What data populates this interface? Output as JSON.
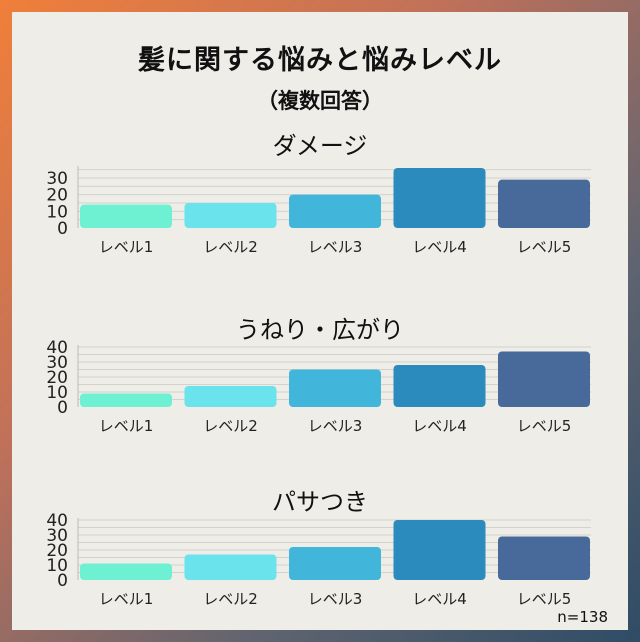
{
  "title": "髪に関する悩みと悩みレベル",
  "subtitle": "（複数回答）",
  "note": "n=138",
  "chart_data": [
    {
      "type": "bar",
      "title": "ダメージ",
      "categories": [
        "レベル1",
        "レベル2",
        "レベル3",
        "レベル4",
        "レベル5"
      ],
      "values": [
        14,
        15,
        20,
        36,
        29
      ],
      "yticks": [
        0,
        10,
        20,
        30
      ],
      "ylim": [
        0,
        36
      ],
      "colors": [
        "#6ef0d2",
        "#6ae3ec",
        "#41b5da",
        "#2c8bbd",
        "#486a9a"
      ],
      "grid": true
    },
    {
      "type": "bar",
      "title": "うねり・広がり",
      "categories": [
        "レベル1",
        "レベル2",
        "レベル3",
        "レベル4",
        "レベル5"
      ],
      "values": [
        9,
        14,
        25,
        28,
        37
      ],
      "yticks": [
        0,
        10,
        20,
        30,
        40
      ],
      "ylim": [
        0,
        40
      ],
      "colors": [
        "#6ef0d2",
        "#6ae3ec",
        "#41b5da",
        "#2c8bbd",
        "#486a9a"
      ],
      "grid": true
    },
    {
      "type": "bar",
      "title": "パサつき",
      "categories": [
        "レベル1",
        "レベル2",
        "レベル3",
        "レベル4",
        "レベル5"
      ],
      "values": [
        11,
        17,
        22,
        40,
        29
      ],
      "yticks": [
        0,
        10,
        20,
        30,
        40
      ],
      "ylim": [
        0,
        40
      ],
      "colors": [
        "#6ef0d2",
        "#6ae3ec",
        "#41b5da",
        "#2c8bbd",
        "#486a9a"
      ],
      "grid": true
    }
  ]
}
